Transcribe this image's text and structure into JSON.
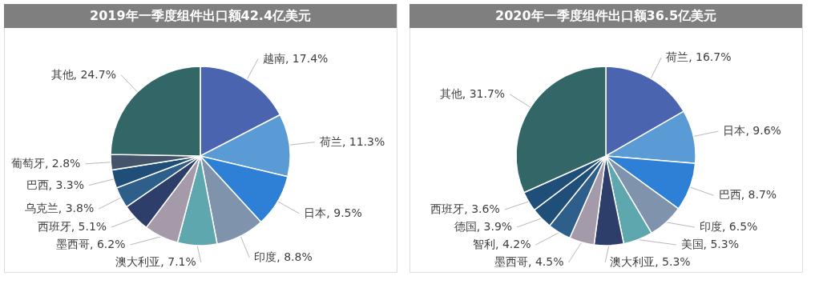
{
  "chart_data": [
    {
      "type": "pie",
      "title": "2019年一季度组件出口额42.4亿美元",
      "categories": [
        "越南",
        "荷兰",
        "日本",
        "印度",
        "澳大利亚",
        "墨西哥",
        "西班牙",
        "乌克兰",
        "巴西",
        "葡萄牙",
        "其他"
      ],
      "values": [
        17.4,
        11.3,
        9.5,
        8.8,
        7.1,
        6.2,
        5.1,
        3.8,
        3.3,
        2.8,
        24.7
      ],
      "value_labels": [
        "17.4%",
        "11.3%",
        "9.5%",
        "8.8%",
        "7.1%",
        "6.2%",
        "5.1%",
        "3.8%",
        "3.3%",
        "2.8%",
        "24.7%"
      ],
      "colors": [
        "#4a64b0",
        "#5b9bd5",
        "#2e7fd6",
        "#8093ad",
        "#5fa7ae",
        "#a59aaa",
        "#2e3e6b",
        "#2d5f8a",
        "#1f4e79",
        "#44546a",
        "#336666"
      ]
    },
    {
      "type": "pie",
      "title": "2020年一季度组件出口额36.5亿美元",
      "categories": [
        "荷兰",
        "日本",
        "巴西",
        "印度",
        "美国",
        "澳大利亚",
        "墨西哥",
        "智利",
        "德国",
        "西班牙",
        "其他"
      ],
      "values": [
        16.7,
        9.6,
        8.7,
        6.5,
        5.3,
        5.3,
        4.5,
        4.2,
        3.9,
        3.6,
        31.7
      ],
      "value_labels": [
        "16.7%",
        "9.6%",
        "8.7%",
        "6.5%",
        "5.3%",
        "5.3%",
        "4.5%",
        "4.2%",
        "3.9%",
        "3.6%",
        "31.7%"
      ],
      "colors": [
        "#4a64b0",
        "#5b9bd5",
        "#2e7fd6",
        "#8093ad",
        "#5fa7ae",
        "#2e3e6b",
        "#a59aaa",
        "#2d5f8a",
        "#1f4e79",
        "#1f4e79",
        "#336666"
      ]
    }
  ]
}
